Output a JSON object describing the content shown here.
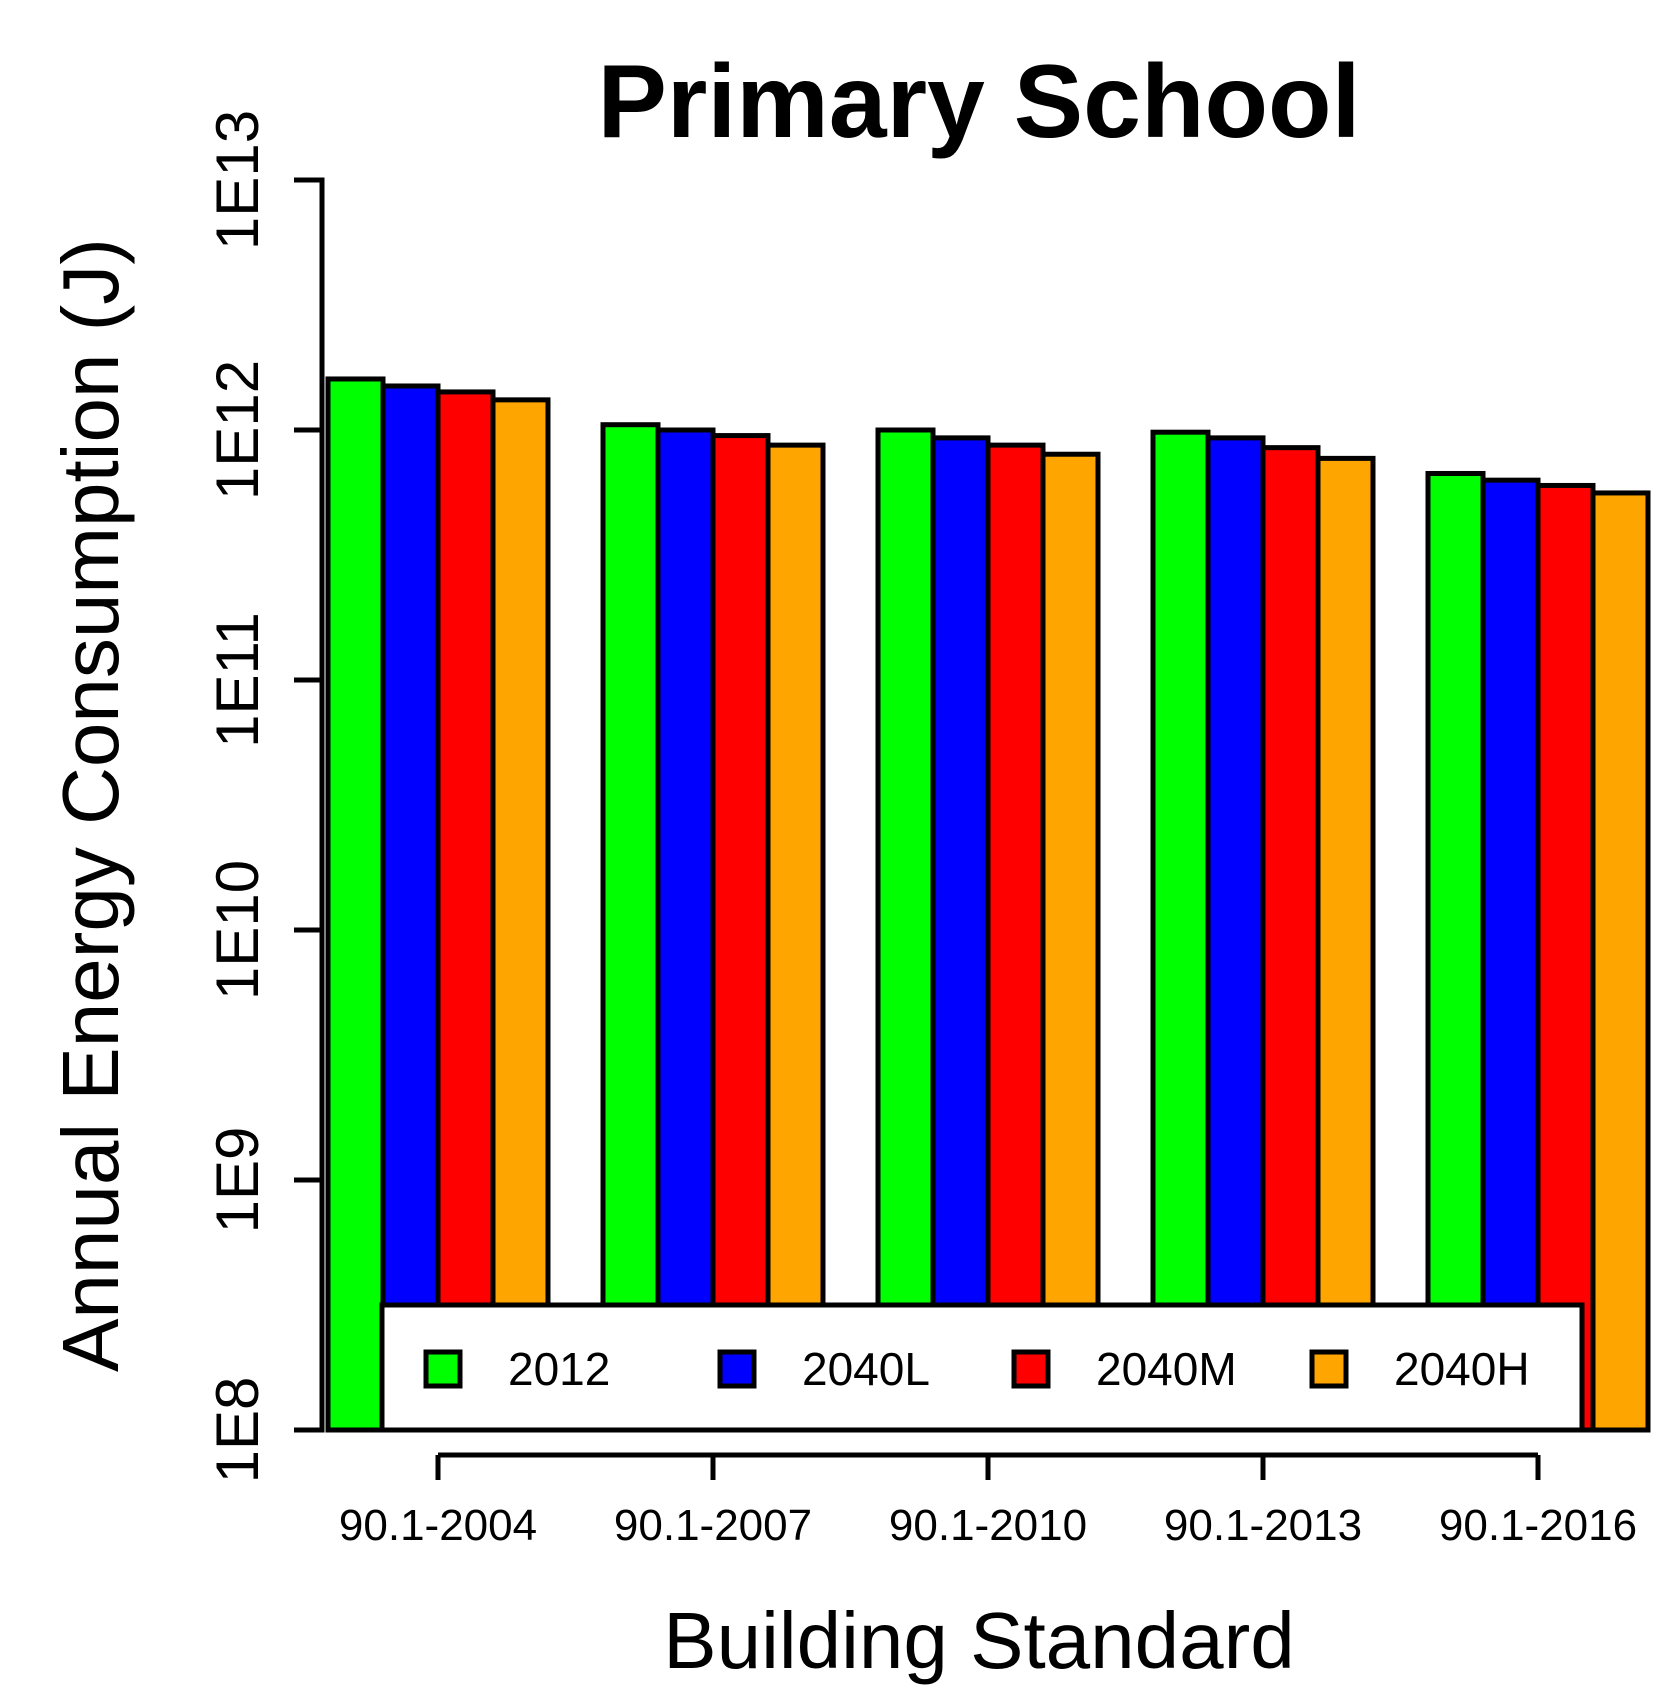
{
  "chart_data": {
    "type": "bar",
    "title": "Primary School",
    "xlabel": "Building Standard",
    "ylabel": "Annual Energy Consumption (J)",
    "y_scale": "log10",
    "ylim": [
      100000000,
      10000000000000
    ],
    "y_ticks": [
      {
        "value": 100000000,
        "label": "1E8"
      },
      {
        "value": 1000000000,
        "label": "1E9"
      },
      {
        "value": 10000000000,
        "label": "1E10"
      },
      {
        "value": 100000000000,
        "label": "1E11"
      },
      {
        "value": 1000000000000,
        "label": "1E12"
      },
      {
        "value": 10000000000000,
        "label": "1E13"
      }
    ],
    "categories": [
      "90.1-2004",
      "90.1-2007",
      "90.1-2010",
      "90.1-2013",
      "90.1-2016"
    ],
    "series": [
      {
        "name": "2012",
        "color": "#00ff00",
        "values": [
          1600000000000.0,
          1050000000000.0,
          1000000000000.0,
          980000000000.0,
          670000000000.0
        ]
      },
      {
        "name": "2040L",
        "color": "#0000ff",
        "values": [
          1500000000000.0,
          1000000000000.0,
          930000000000.0,
          930000000000.0,
          630000000000.0
        ]
      },
      {
        "name": "2040M",
        "color": "#ff0000",
        "values": [
          1420000000000.0,
          950000000000.0,
          870000000000.0,
          850000000000.0,
          600000000000.0
        ]
      },
      {
        "name": "2040H",
        "color": "#ffa500",
        "values": [
          1320000000000.0,
          870000000000.0,
          800000000000.0,
          770000000000.0,
          560000000000.0
        ]
      }
    ],
    "grid": false,
    "legend": "bottom, inside plot, horizontal"
  }
}
